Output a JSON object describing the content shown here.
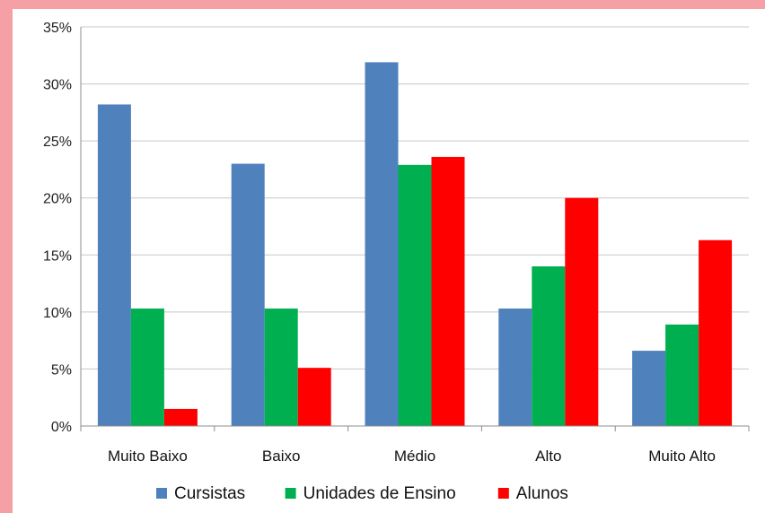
{
  "chart_data": {
    "type": "bar",
    "title": "",
    "xlabel": "",
    "ylabel": "",
    "ylim": [
      0,
      35
    ],
    "yticks": [
      0,
      5,
      10,
      15,
      20,
      25,
      30,
      35
    ],
    "ytick_labels": [
      "0%",
      "5%",
      "10%",
      "15%",
      "20%",
      "25%",
      "30%",
      "35%"
    ],
    "categories": [
      "Muito Baixo",
      "Baixo",
      "Médio",
      "Alto",
      "Muito Alto"
    ],
    "series": [
      {
        "name": "Cursistas",
        "color": "#4f81bd",
        "values": [
          28.2,
          23.0,
          31.9,
          10.3,
          6.6
        ]
      },
      {
        "name": "Unidades de Ensino",
        "color": "#00b050",
        "values": [
          10.3,
          10.3,
          22.9,
          14.0,
          8.9
        ]
      },
      {
        "name": "Alunos",
        "color": "#ff0000",
        "values": [
          1.5,
          5.1,
          23.6,
          20.0,
          16.3
        ]
      }
    ],
    "grid": "horizontal",
    "legend": "bottom"
  }
}
